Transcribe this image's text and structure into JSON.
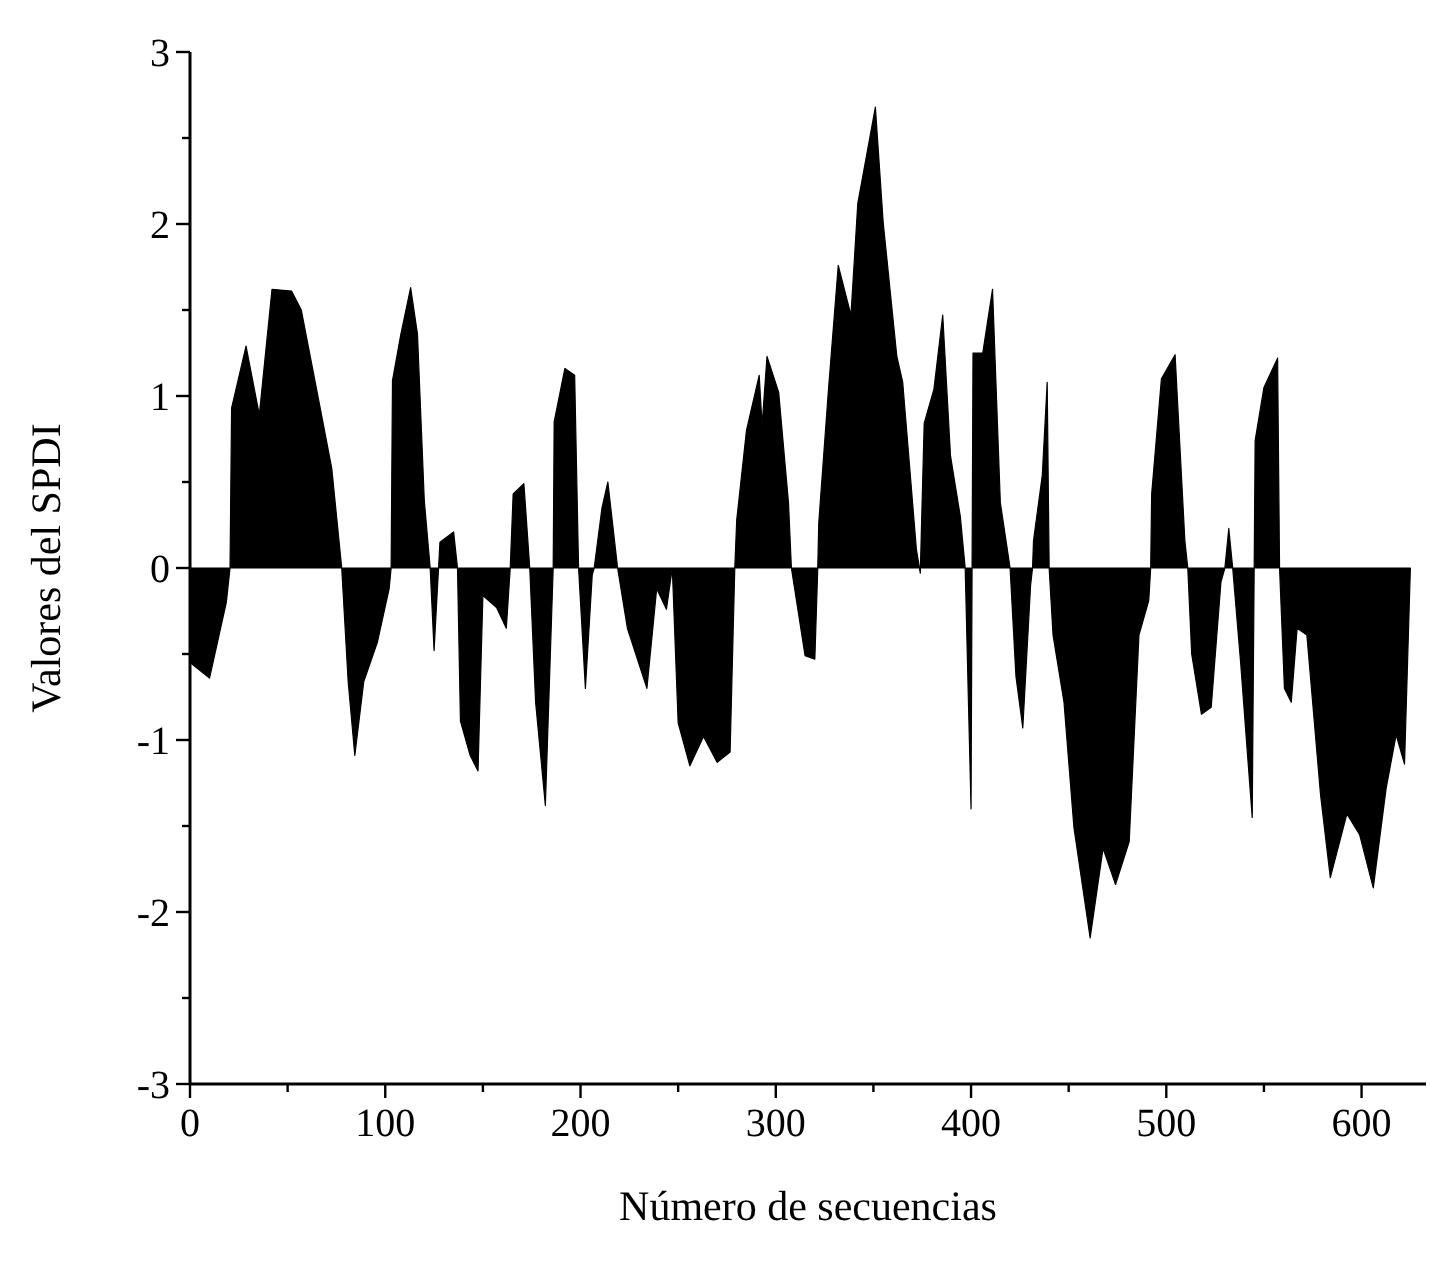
{
  "chart_data": {
    "type": "area",
    "xlabel": "Número de secuencias",
    "ylabel": "Valores del SPDI",
    "xlim": [
      0,
      633
    ],
    "ylim": [
      -3,
      3
    ],
    "xticks": [
      0,
      {
        "value": 50,
        "label": null
      },
      100,
      {
        "value": 150,
        "label": null
      },
      200,
      {
        "value": 250,
        "label": null
      },
      300,
      {
        "value": 350,
        "label": null
      },
      400,
      {
        "value": 450,
        "label": null
      },
      500,
      {
        "value": 550,
        "label": null
      },
      600
    ],
    "yticks": [
      -3,
      {
        "value": -2.5,
        "label": null
      },
      -2,
      {
        "value": -1.5,
        "label": null
      },
      -1,
      {
        "value": -0.5,
        "label": null
      },
      0,
      {
        "value": 0.5,
        "label": null
      },
      1,
      {
        "value": 1.5,
        "label": null
      },
      2,
      {
        "value": 2.5,
        "label": null
      },
      3
    ],
    "series": [
      {
        "color": "#000000",
        "x": [
          0,
          10,
          18.6,
          20.5,
          21.3,
          28.7,
          35.5,
          42,
          52,
          57,
          66,
          72.6,
          77.7,
          81,
          84.4,
          89,
          96,
          102,
          103,
          103.7,
          108,
          113,
          116.5,
          120,
          123,
          125,
          128,
          135,
          137,
          138.5,
          143.5,
          147.5,
          150,
          157,
          162,
          164,
          165.5,
          171,
          174,
          177,
          182,
          186,
          186.5,
          192,
          197,
          199,
          202.5,
          206,
          207,
          211,
          214,
          219,
          224,
          234,
          239,
          244,
          247,
          250,
          256,
          263,
          270,
          276.6,
          279,
          280,
          285,
          291.5,
          293,
          295.5,
          301.5,
          306.5,
          308,
          315,
          320,
          321.5,
          322,
          327,
          332,
          338.5,
          342,
          347,
          351,
          355,
          362,
          365,
          372,
          374,
          376,
          381,
          385.5,
          389.5,
          394.5,
          397,
          400,
          401,
          406,
          411,
          415,
          420,
          423,
          426.5,
          430.5,
          431.5,
          432,
          436.5,
          439,
          440,
          442,
          447.6,
          452.7,
          461,
          467.6,
          474,
          481,
          486,
          491,
          492,
          492.5,
          497.5,
          504.5,
          509.5,
          511,
          513,
          518,
          523,
          528,
          530,
          532,
          534,
          538,
          544,
          545,
          545.5,
          550,
          557,
          558,
          560.5,
          564,
          567,
          572,
          579,
          584,
          592.5,
          599,
          606,
          612.6,
          617.7,
          622,
          625
        ],
        "values": [
          -0.55,
          -0.64,
          -0.2,
          0,
          0.93,
          1.29,
          0.89,
          1.62,
          1.61,
          1.5,
          0.97,
          0.58,
          0,
          -0.66,
          -1.09,
          -0.66,
          -0.43,
          -0.12,
          0,
          1.09,
          1.36,
          1.63,
          1.36,
          0.39,
          0,
          -0.48,
          0.15,
          0.21,
          0,
          -0.89,
          -1.09,
          -1.18,
          -0.16,
          -0.23,
          -0.35,
          0,
          0.43,
          0.49,
          0,
          -0.78,
          -1.38,
          0,
          0.85,
          1.16,
          1.12,
          0,
          -0.7,
          -0.04,
          0,
          0.35,
          0.5,
          0,
          -0.35,
          -0.7,
          -0.12,
          -0.24,
          0,
          -0.9,
          -1.15,
          -0.98,
          -1.13,
          -1.07,
          0,
          0.28,
          0.8,
          1.12,
          0.83,
          1.23,
          1.02,
          0.38,
          0,
          -0.51,
          -0.53,
          0,
          0.26,
          1.04,
          1.76,
          1.47,
          2.12,
          2.43,
          2.68,
          2.01,
          1.23,
          1.08,
          0.11,
          -0.03,
          0.84,
          1.04,
          1.47,
          0.65,
          0.3,
          0,
          -1.4,
          1.25,
          1.25,
          1.62,
          0.38,
          0,
          -0.63,
          -0.93,
          -0.1,
          0,
          0.16,
          0.54,
          1.08,
          0,
          -0.39,
          -0.78,
          -1.51,
          -2.15,
          -1.63,
          -1.84,
          -1.59,
          -0.39,
          -0.19,
          0,
          0.43,
          1.1,
          1.24,
          0.16,
          0,
          -0.5,
          -0.85,
          -0.81,
          -0.08,
          0,
          0.23,
          0,
          -0.54,
          -1.45,
          0,
          0.74,
          1.05,
          1.22,
          0,
          -0.7,
          -0.78,
          -0.35,
          -0.39,
          -1.32,
          -1.8,
          -1.43,
          -1.55,
          -1.86,
          -1.28,
          -0.97,
          -1.14,
          0
        ]
      }
    ]
  }
}
